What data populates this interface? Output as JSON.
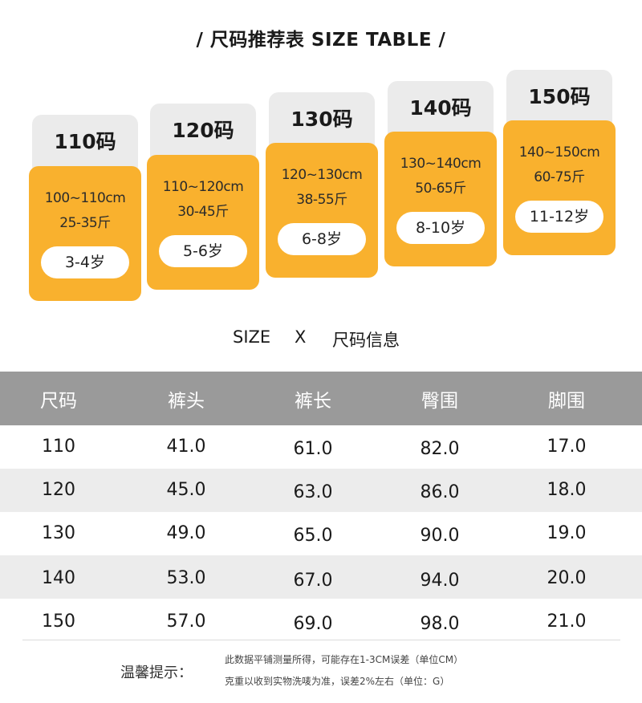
{
  "title": "/ 尺码推荐表 SIZE TABLE /",
  "cards": [
    {
      "size": "110码",
      "height": "100~110cm",
      "weight": "25-35斤",
      "age": "3-4岁"
    },
    {
      "size": "120码",
      "height": "110~120cm",
      "weight": "30-45斤",
      "age": "5-6岁"
    },
    {
      "size": "130码",
      "height": "120~130cm",
      "weight": "38-55斤",
      "age": "6-8岁"
    },
    {
      "size": "140码",
      "height": "130~140cm",
      "weight": "50-65斤",
      "age": "8-10岁"
    },
    {
      "size": "150码",
      "height": "140~150cm",
      "weight": "60-75斤",
      "age": "11-12岁"
    }
  ],
  "subtitle": {
    "left": "SIZE",
    "mid": "X",
    "right": "尺码信息"
  },
  "table": {
    "headers": [
      "尺码",
      "裤头",
      "裤长",
      "臀围",
      "脚围"
    ],
    "rows": [
      [
        "110",
        "41.0",
        "61.0",
        "82.0",
        "17.0"
      ],
      [
        "120",
        "45.0",
        "63.0",
        "86.0",
        "18.0"
      ],
      [
        "130",
        "49.0",
        "65.0",
        "90.0",
        "19.0"
      ],
      [
        "140",
        "53.0",
        "67.0",
        "94.0",
        "20.0"
      ],
      [
        "150",
        "57.0",
        "69.0",
        "98.0",
        "21.0"
      ]
    ]
  },
  "note": {
    "label": "温馨提示：",
    "lines": [
      "此数据平铺测量所得，可能存在1-3CM误差（单位CM）",
      "克重以收到实物洗唛为准，误差2%左右（单位：G）"
    ]
  },
  "colors": {
    "accent": "#f9b12e",
    "cap": "#ebebeb",
    "header": "#9a9a9a",
    "stripe": "#ececec"
  }
}
